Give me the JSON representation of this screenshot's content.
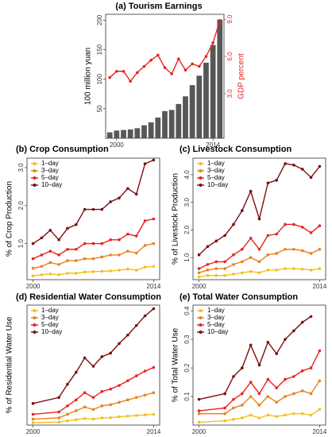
{
  "chart_data": [
    {
      "type": "bar",
      "title": "(a) Tourism Earnings",
      "ylabel": "100 million yuan",
      "y2label": "GDP percent",
      "x": [
        1999,
        2000,
        2001,
        2002,
        2003,
        2004,
        2005,
        2006,
        2007,
        2008,
        2009,
        2010,
        2011,
        2012,
        2013,
        2014,
        2015
      ],
      "xlim": [
        1998.4,
        2015.6
      ],
      "xticks": [
        2000,
        2014
      ],
      "ylim": [
        0,
        210
      ],
      "yticks": [
        50,
        100,
        150,
        200
      ],
      "y2lim": [
        -0.6,
        9.4
      ],
      "y2ticks": [
        {
          "value": 3,
          "label": "3.0"
        },
        {
          "value": 6,
          "label": "6.0"
        },
        {
          "value": 9,
          "label": "9.0"
        }
      ],
      "y2color": "#e8231f",
      "series": [
        {
          "type": "bar",
          "color": "#575757",
          "values": [
            10,
            13,
            14,
            15,
            17,
            22,
            27,
            35,
            46,
            48,
            58,
            71,
            90,
            106,
            128,
            158,
            201
          ]
        },
        {
          "type": "line",
          "axis": "y2",
          "color": "#e8231f",
          "values": [
            4.3,
            4.8,
            4.8,
            4.0,
            4.7,
            5.2,
            5.7,
            6.1,
            5.1,
            4.6,
            5.8,
            4.9,
            5.4,
            5.2,
            6.0,
            7.1,
            8.9
          ]
        }
      ]
    },
    {
      "type": "line",
      "title": "(b) Crop Consumption",
      "ylabel": "% of Crop Production",
      "x": [
        2000,
        2001,
        2002,
        2003,
        2004,
        2005,
        2006,
        2007,
        2008,
        2009,
        2010,
        2011,
        2012,
        2013,
        2014
      ],
      "xlim": [
        1999.3,
        2014.7
      ],
      "xticks": [
        2000,
        2014
      ],
      "ylim": [
        0.05,
        3.25
      ],
      "yticks": [
        {
          "value": 1,
          "label": "1.0"
        },
        {
          "value": 2,
          "label": "2.0"
        },
        {
          "value": 3,
          "label": "3.0"
        }
      ],
      "legend": "top-left",
      "series": [
        {
          "name": "1–day",
          "color": "#f2c11b",
          "values": [
            0.15,
            0.18,
            0.2,
            0.18,
            0.22,
            0.22,
            0.25,
            0.26,
            0.27,
            0.28,
            0.3,
            0.33,
            0.3,
            0.38,
            0.4
          ]
        },
        {
          "name": "3–day",
          "color": "#e8821a",
          "values": [
            0.35,
            0.4,
            0.5,
            0.45,
            0.55,
            0.55,
            0.6,
            0.6,
            0.65,
            0.7,
            0.7,
            0.8,
            0.75,
            0.95,
            1.0
          ]
        },
        {
          "name": "5–day",
          "color": "#e8231f",
          "values": [
            0.6,
            0.7,
            0.8,
            0.7,
            0.85,
            0.85,
            1.0,
            1.0,
            1.0,
            1.1,
            1.1,
            1.25,
            1.2,
            1.6,
            1.65
          ]
        },
        {
          "name": "10–day",
          "color": "#7a0f10",
          "values": [
            1.0,
            1.15,
            1.35,
            1.1,
            1.4,
            1.5,
            1.9,
            1.9,
            1.9,
            2.1,
            2.2,
            2.45,
            2.3,
            3.1,
            3.2
          ]
        }
      ]
    },
    {
      "type": "line",
      "title": "(c) Livestock Consumption",
      "ylabel": "% of Livestock Production",
      "x": [
        2000,
        2001,
        2002,
        2003,
        2004,
        2005,
        2006,
        2007,
        2008,
        2009,
        2010,
        2011,
        2012,
        2013,
        2014
      ],
      "xlim": [
        1999.3,
        2014.7
      ],
      "xticks": [
        2000,
        2014
      ],
      "ylim": [
        0.2,
        4.6
      ],
      "yticks": [
        {
          "value": 1,
          "label": "1.0"
        },
        {
          "value": 2,
          "label": "2.0"
        },
        {
          "value": 3,
          "label": "3.0"
        },
        {
          "value": 4,
          "label": "4.0"
        }
      ],
      "legend": "top-left",
      "series": [
        {
          "name": "1–day",
          "color": "#f2c11b",
          "values": [
            0.3,
            0.35,
            0.35,
            0.35,
            0.4,
            0.45,
            0.5,
            0.45,
            0.55,
            0.55,
            0.6,
            0.6,
            0.58,
            0.55,
            0.6
          ]
        },
        {
          "name": "3–day",
          "color": "#e8821a",
          "values": [
            0.45,
            0.55,
            0.6,
            0.6,
            0.75,
            0.85,
            1.0,
            0.85,
            1.1,
            1.15,
            1.3,
            1.3,
            1.25,
            1.15,
            1.3
          ]
        },
        {
          "name": "5–day",
          "color": "#e8231f",
          "values": [
            0.6,
            0.75,
            0.85,
            0.85,
            1.1,
            1.3,
            1.7,
            1.3,
            1.8,
            1.85,
            2.2,
            2.2,
            2.1,
            1.9,
            2.15
          ]
        },
        {
          "name": "10–day",
          "color": "#7a0f10",
          "values": [
            1.1,
            1.4,
            1.6,
            1.8,
            2.2,
            2.7,
            3.4,
            2.4,
            3.7,
            3.8,
            4.4,
            4.35,
            4.2,
            3.9,
            4.3
          ]
        }
      ]
    },
    {
      "type": "line",
      "title": "(d) Residential Water Consumption",
      "ylabel": "% of Residential Water Use",
      "x": [
        2000,
        2003,
        2004,
        2005,
        2006,
        2007,
        2008,
        2009,
        2010,
        2011,
        2012,
        2013,
        2014
      ],
      "xlim": [
        1999.3,
        2014.7
      ],
      "xticks": [
        2000,
        2014
      ],
      "ylim": [
        0,
        10
      ],
      "legend": "top-left",
      "series": [
        {
          "name": "1–day",
          "color": "#f2c11b",
          "values": [
            0.2,
            0.25,
            0.35,
            0.45,
            0.55,
            0.5,
            0.6,
            0.62,
            0.7,
            0.75,
            0.8,
            0.85,
            0.9
          ]
        },
        {
          "name": "3–day",
          "color": "#e8821a",
          "values": [
            0.5,
            0.6,
            0.9,
            1.2,
            1.5,
            1.3,
            1.6,
            1.7,
            1.9,
            2.1,
            2.3,
            2.5,
            2.7
          ]
        },
        {
          "name": "5–day",
          "color": "#e8231f",
          "values": [
            0.9,
            1.1,
            1.6,
            2.1,
            2.7,
            2.3,
            2.8,
            3.0,
            3.3,
            3.7,
            4.1,
            4.5,
            4.8
          ]
        },
        {
          "name": "10–day",
          "color": "#7a0f10",
          "values": [
            1.8,
            2.3,
            3.4,
            4.4,
            5.6,
            4.9,
            5.7,
            6.0,
            6.8,
            7.5,
            8.3,
            9.1,
            9.7
          ]
        }
      ]
    },
    {
      "type": "line",
      "title": "(e) Total Water Consumption",
      "ylabel": "% of Total Water Use",
      "x": [
        2000,
        2003,
        2004,
        2005,
        2006,
        2007,
        2008,
        2009,
        2010,
        2011,
        2012,
        2013,
        2014
      ],
      "xlim": [
        1999.3,
        2014.7
      ],
      "xticks": [
        2000,
        2014
      ],
      "ylim": [
        0,
        0.42
      ],
      "yticks": [
        0.1,
        0.2,
        0.3,
        0.4
      ],
      "legend": "top-left",
      "series": [
        {
          "name": "1–day",
          "color": "#f2c11b",
          "values": [
            0.01,
            0.015,
            0.02,
            0.025,
            0.035,
            0.025,
            0.035,
            0.03,
            0.035,
            0.04,
            0.04,
            0.035,
            0.055
          ]
        },
        {
          "name": "3–day",
          "color": "#e8821a",
          "values": [
            0.04,
            0.04,
            0.06,
            0.07,
            0.1,
            0.07,
            0.1,
            0.08,
            0.1,
            0.11,
            0.12,
            0.11,
            0.155
          ]
        },
        {
          "name": "5–day",
          "color": "#e8231f",
          "values": [
            0.05,
            0.06,
            0.09,
            0.11,
            0.15,
            0.11,
            0.16,
            0.13,
            0.16,
            0.17,
            0.19,
            0.2,
            0.26
          ]
        },
        {
          "name": "10–day",
          "color": "#7a0f10",
          "values": [
            0.09,
            0.11,
            0.17,
            0.2,
            0.28,
            0.21,
            0.29,
            0.25,
            0.3,
            0.33,
            0.36,
            0.38,
            null
          ]
        }
      ]
    }
  ]
}
